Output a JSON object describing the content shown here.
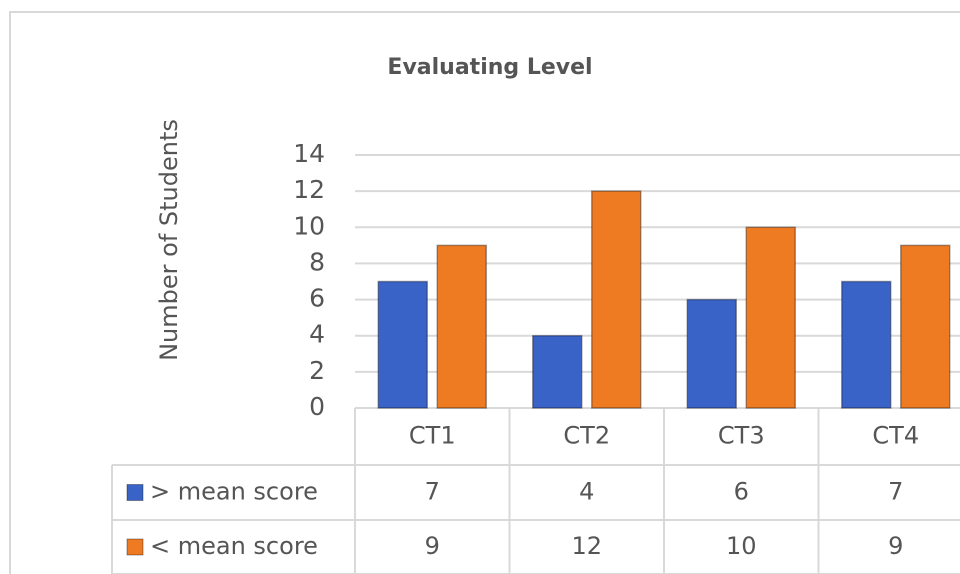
{
  "chart_data": {
    "type": "bar",
    "title": "Evaluating Level",
    "y_label": "Number of Students",
    "categories": [
      "CT1",
      "CT2",
      "CT3",
      "CT4"
    ],
    "series": [
      {
        "name": "> mean score",
        "color": "#3a63c8",
        "values": [
          7,
          4,
          6,
          7
        ]
      },
      {
        "name": "< mean score",
        "color": "#ee7a22",
        "values": [
          9,
          12,
          10,
          9
        ]
      }
    ],
    "ylim": [
      0,
      14
    ],
    "yticks": [
      0,
      2,
      4,
      6,
      8,
      10,
      12,
      14
    ],
    "grid": true,
    "data_table": true
  }
}
